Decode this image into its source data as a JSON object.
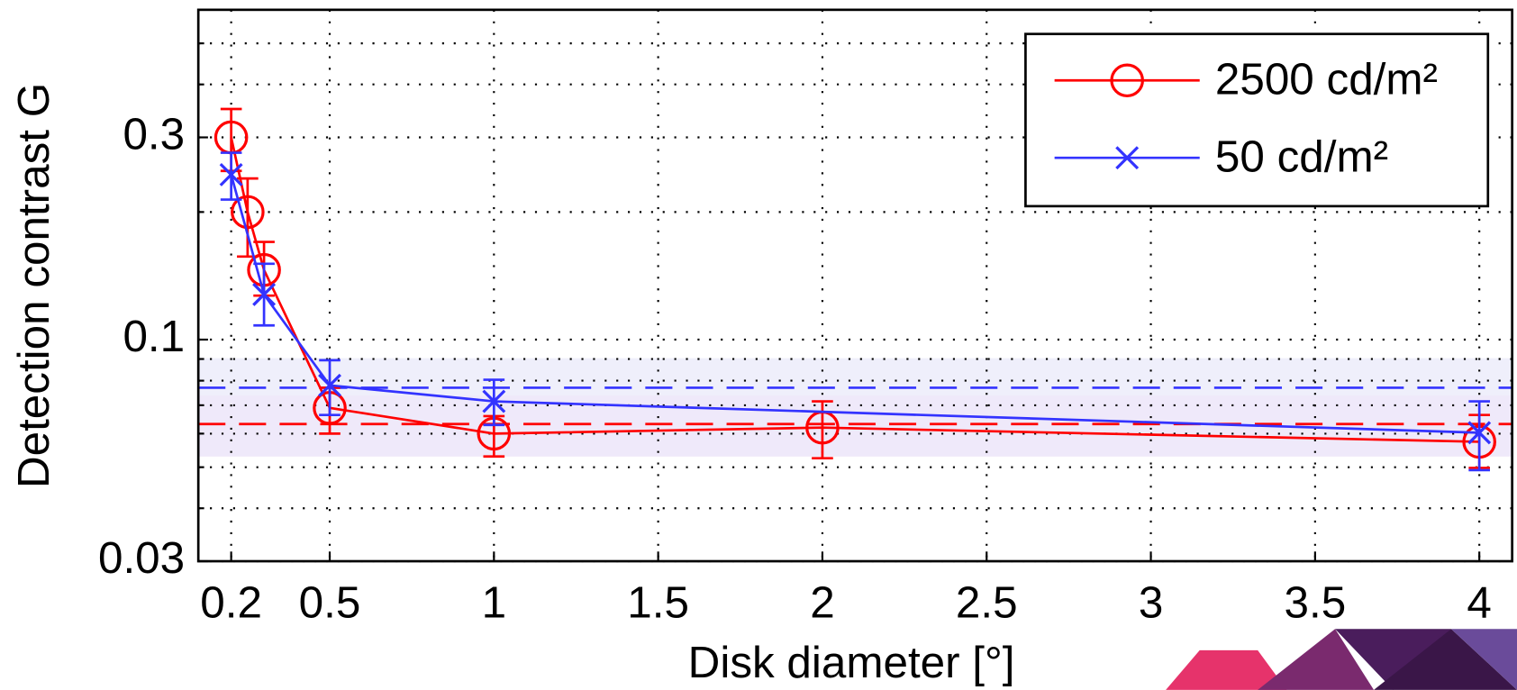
{
  "chart_data": {
    "type": "line",
    "xlabel": "Disk diameter [°]",
    "ylabel": "Detection contrast G",
    "xlim": [
      0.1,
      4.1
    ],
    "xticks": [
      0.2,
      0.5,
      1,
      1.5,
      2,
      2.5,
      3,
      3.5,
      4
    ],
    "ylim": [
      0.03,
      0.6
    ],
    "yscale": "log",
    "yticks": [
      0.03,
      0.1,
      0.3
    ],
    "yminorticks": [
      0.04,
      0.05,
      0.06,
      0.07,
      0.08,
      0.09,
      0.2,
      0.4,
      0.5
    ],
    "grid": true,
    "legend": "upper right",
    "series": [
      {
        "name": "2500 cd/m²",
        "color": "#ff0000",
        "marker": "circle",
        "x": [
          0.2,
          0.25,
          0.3,
          0.5,
          1,
          2,
          4
        ],
        "values": [
          0.3,
          0.2,
          0.146,
          0.069,
          0.06,
          0.062,
          0.0574
        ],
        "error_low": [
          0.25,
          0.157,
          0.127,
          0.06,
          0.053,
          0.0525,
          0.0498
        ],
        "error_high": [
          0.35,
          0.24,
          0.17,
          0.077,
          0.066,
          0.0715,
          0.0664
        ],
        "mean_line": 0.0632,
        "band": [
          0.053,
          0.0738
        ],
        "band_color": "#ffd6f5"
      },
      {
        "name": "50 cd/m²",
        "color": "#3333ff",
        "marker": "x",
        "x": [
          0.2,
          0.3,
          0.5,
          1,
          4
        ],
        "values": [
          0.245,
          0.1278,
          0.078,
          0.0715,
          0.0603
        ],
        "error_low": [
          0.214,
          0.108,
          0.0664,
          0.0629,
          0.0492
        ],
        "error_high": [
          0.276,
          0.151,
          0.0894,
          0.0804,
          0.0715
        ],
        "mean_line": 0.077,
        "band": [
          0.053,
          0.0904
        ],
        "band_color": "#ebebfa"
      }
    ]
  }
}
